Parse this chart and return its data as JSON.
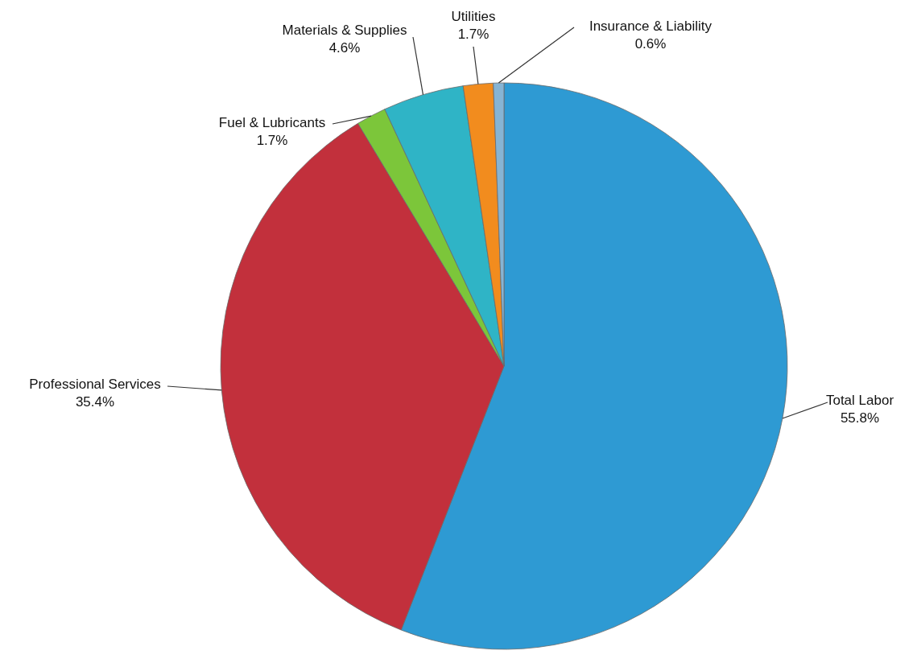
{
  "chart_data": {
    "type": "pie",
    "categories": [
      "Total Labor",
      "Professional Services",
      "Fuel & Lubricants",
      "Materials & Supplies",
      "Utilities",
      "Insurance & Liability"
    ],
    "values": [
      55.8,
      35.4,
      1.7,
      4.6,
      1.7,
      0.6
    ],
    "colors": [
      "#2e9ad3",
      "#c2303c",
      "#7cc63a",
      "#2fb4c6",
      "#f28c1e",
      "#86b4d4"
    ],
    "value_labels": [
      "55.8%",
      "35.4%",
      "1.7%",
      "4.6%",
      "1.7%",
      "0.6%"
    ]
  }
}
